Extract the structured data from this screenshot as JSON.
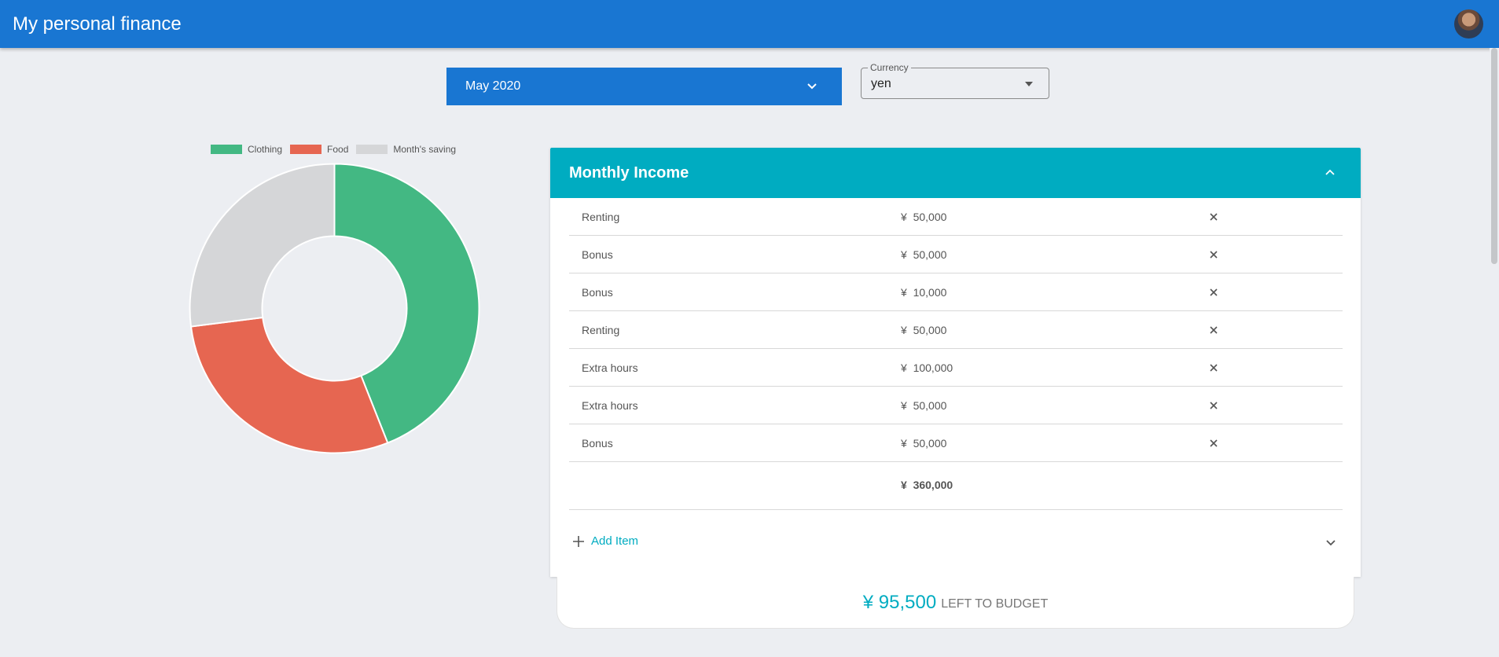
{
  "app": {
    "title": "My personal finance"
  },
  "month_selector": {
    "value": "May 2020"
  },
  "currency": {
    "label": "Currency",
    "value": "yen"
  },
  "chart_data": {
    "type": "pie",
    "donut": true,
    "legend_position": "top",
    "categories": [
      "Clothing",
      "Food",
      "Month's saving"
    ],
    "values": [
      44,
      29,
      27
    ],
    "colors": [
      "#43b883",
      "#e66651",
      "#d5d6d8"
    ]
  },
  "income_panel": {
    "title": "Monthly Income",
    "currency_symbol": "¥",
    "items": [
      {
        "description": "Renting",
        "amount": "50,000"
      },
      {
        "description": "Bonus",
        "amount": "50,000"
      },
      {
        "description": "Bonus",
        "amount": "10,000"
      },
      {
        "description": "Renting",
        "amount": "50,000"
      },
      {
        "description": "Extra hours",
        "amount": "100,000"
      },
      {
        "description": "Extra hours",
        "amount": "50,000"
      },
      {
        "description": "Bonus",
        "amount": "50,000"
      }
    ],
    "total": "360,000",
    "add_item_label": "Add Item"
  },
  "budget": {
    "currency_symbol": "¥",
    "amount": "95,500",
    "label": "LEFT TO BUDGET"
  },
  "colors": {
    "appbar": "#1976d2",
    "accent": "#00acc1",
    "background": "#eceef2"
  }
}
